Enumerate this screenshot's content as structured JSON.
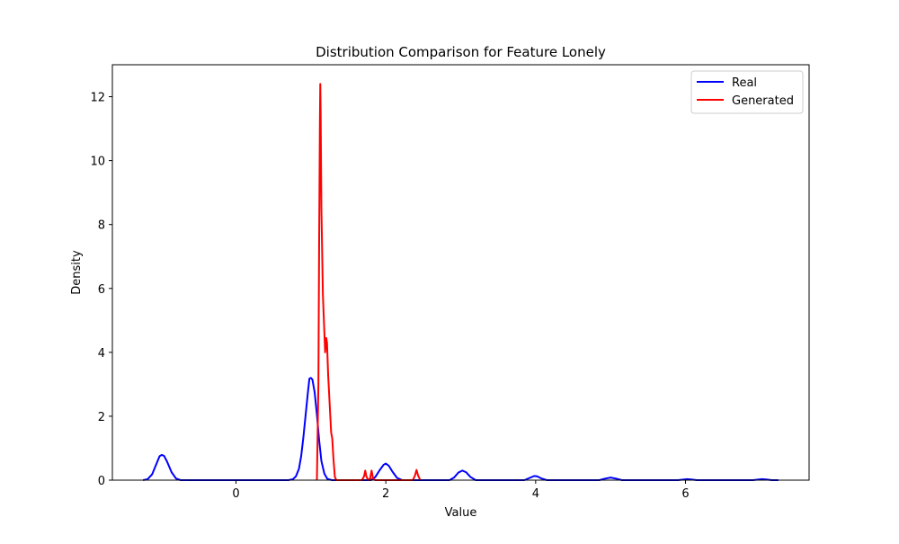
{
  "chart_data": {
    "type": "line",
    "title": "Distribution Comparison for Feature Lonely",
    "xlabel": "Value",
    "ylabel": "Density",
    "xlim": [
      -1.65,
      7.65
    ],
    "ylim": [
      0,
      13.0
    ],
    "xticks": [
      0,
      2,
      4,
      6
    ],
    "yticks": [
      0,
      2,
      4,
      6,
      8,
      10,
      12
    ],
    "grid": false,
    "legend_position": "top-right",
    "series": [
      {
        "name": "Real",
        "color": "#0000ff",
        "points": [
          [
            -1.24,
            0.0
          ],
          [
            -1.18,
            0.03
          ],
          [
            -1.12,
            0.18
          ],
          [
            -1.06,
            0.52
          ],
          [
            -1.02,
            0.75
          ],
          [
            -0.99,
            0.79
          ],
          [
            -0.96,
            0.76
          ],
          [
            -0.92,
            0.58
          ],
          [
            -0.86,
            0.25
          ],
          [
            -0.8,
            0.05
          ],
          [
            -0.74,
            0.0
          ],
          [
            0.7,
            0.0
          ],
          [
            0.76,
            0.03
          ],
          [
            0.8,
            0.12
          ],
          [
            0.84,
            0.35
          ],
          [
            0.87,
            0.75
          ],
          [
            0.9,
            1.35
          ],
          [
            0.93,
            2.05
          ],
          [
            0.96,
            2.75
          ],
          [
            0.98,
            3.18
          ],
          [
            1.0,
            3.2
          ],
          [
            1.02,
            3.15
          ],
          [
            1.05,
            2.75
          ],
          [
            1.08,
            2.05
          ],
          [
            1.11,
            1.25
          ],
          [
            1.14,
            0.6
          ],
          [
            1.18,
            0.2
          ],
          [
            1.22,
            0.04
          ],
          [
            1.28,
            0.0
          ],
          [
            1.8,
            0.0
          ],
          [
            1.86,
            0.1
          ],
          [
            1.92,
            0.32
          ],
          [
            1.97,
            0.48
          ],
          [
            2.0,
            0.52
          ],
          [
            2.04,
            0.45
          ],
          [
            2.09,
            0.26
          ],
          [
            2.15,
            0.07
          ],
          [
            2.22,
            0.0
          ],
          [
            2.85,
            0.0
          ],
          [
            2.91,
            0.08
          ],
          [
            2.97,
            0.24
          ],
          [
            3.02,
            0.3
          ],
          [
            3.07,
            0.25
          ],
          [
            3.13,
            0.1
          ],
          [
            3.2,
            0.0
          ],
          [
            3.85,
            0.0
          ],
          [
            3.92,
            0.07
          ],
          [
            3.98,
            0.13
          ],
          [
            4.02,
            0.12
          ],
          [
            4.08,
            0.05
          ],
          [
            4.15,
            0.0
          ],
          [
            4.85,
            0.0
          ],
          [
            4.93,
            0.05
          ],
          [
            5.0,
            0.08
          ],
          [
            5.07,
            0.05
          ],
          [
            5.15,
            0.0
          ],
          [
            5.9,
            0.0
          ],
          [
            5.98,
            0.02
          ],
          [
            6.02,
            0.03
          ],
          [
            6.08,
            0.02
          ],
          [
            6.15,
            0.0
          ],
          [
            6.9,
            0.0
          ],
          [
            6.98,
            0.02
          ],
          [
            7.02,
            0.03
          ],
          [
            7.08,
            0.02
          ],
          [
            7.15,
            0.0
          ],
          [
            7.24,
            0.0
          ]
        ]
      },
      {
        "name": "Generated",
        "color": "#ff0000",
        "points": [
          [
            1.08,
            0.0
          ],
          [
            1.1,
            3.0
          ],
          [
            1.11,
            7.5
          ],
          [
            1.12,
            11.2
          ],
          [
            1.125,
            12.4
          ],
          [
            1.13,
            11.5
          ],
          [
            1.14,
            8.5
          ],
          [
            1.16,
            5.8
          ],
          [
            1.18,
            4.6
          ],
          [
            1.19,
            4.0
          ],
          [
            1.205,
            4.45
          ],
          [
            1.215,
            4.3
          ],
          [
            1.23,
            3.3
          ],
          [
            1.25,
            2.4
          ],
          [
            1.27,
            1.5
          ],
          [
            1.285,
            1.3
          ],
          [
            1.3,
            0.7
          ],
          [
            1.32,
            0.1
          ],
          [
            1.34,
            0.0
          ],
          [
            1.68,
            0.0
          ],
          [
            1.71,
            0.12
          ],
          [
            1.725,
            0.3
          ],
          [
            1.74,
            0.12
          ],
          [
            1.765,
            0.0
          ],
          [
            1.79,
            0.05
          ],
          [
            1.81,
            0.3
          ],
          [
            1.83,
            0.05
          ],
          [
            1.86,
            0.0
          ],
          [
            2.36,
            0.0
          ],
          [
            2.39,
            0.15
          ],
          [
            2.41,
            0.32
          ],
          [
            2.43,
            0.15
          ],
          [
            2.46,
            0.0
          ]
        ]
      }
    ]
  }
}
